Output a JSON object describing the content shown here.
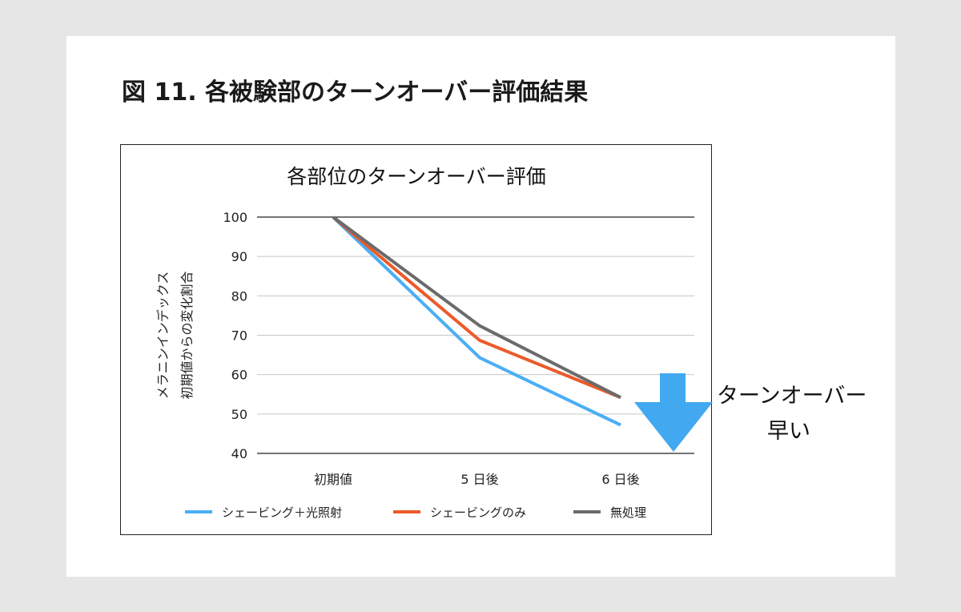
{
  "figure_title": "図 11. 各被験部のターンオーバー評価結果",
  "annotation": {
    "line1": "ターンオーバー",
    "line2": "早い"
  },
  "colors": {
    "arrow": "#42a9f0",
    "grid": "#c7c7c7",
    "axis": "#222222"
  },
  "chart_data": {
    "type": "line",
    "title": "各部位のターンオーバー評価",
    "ylabel_lines": [
      "メラニンインデックス",
      "初期値からの変化割合"
    ],
    "categories": [
      "初期値",
      "5 日後",
      "6 日後"
    ],
    "ylim": [
      40,
      100
    ],
    "yticks": [
      40,
      50,
      60,
      70,
      80,
      90,
      100
    ],
    "grid": true,
    "legend_position": "bottom",
    "series": [
      {
        "name": "シェービング＋光照射",
        "color": "#4baef4",
        "values": [
          100,
          64.3,
          47.2
        ]
      },
      {
        "name": "シェービングのみ",
        "color": "#ec5a2a",
        "values": [
          100,
          68.7,
          54.2
        ]
      },
      {
        "name": "無処理",
        "color": "#6b6b6b",
        "values": [
          100,
          72.4,
          54.2
        ]
      }
    ]
  }
}
